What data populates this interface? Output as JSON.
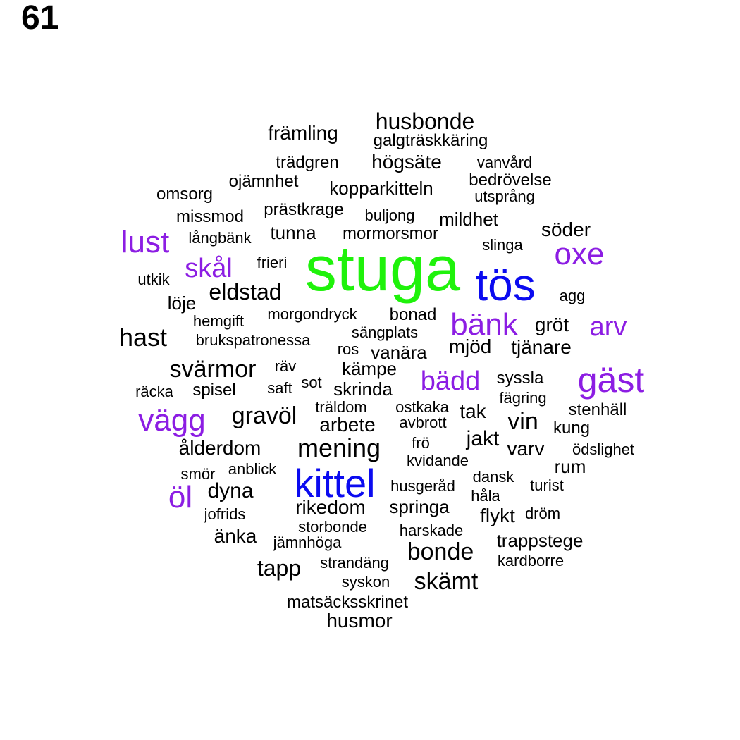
{
  "page_number": "61",
  "colors": {
    "black": "#000000",
    "purple": "#8c1de3",
    "blue": "#0b0bf0",
    "green": "#1ff20b"
  },
  "words": [
    {
      "text": "stuga",
      "color": "green"
    },
    {
      "text": "tös",
      "color": "blue"
    },
    {
      "text": "kittel",
      "color": "blue"
    },
    {
      "text": "gäst",
      "color": "purple"
    },
    {
      "text": "bänk",
      "color": "purple"
    },
    {
      "text": "lust",
      "color": "purple"
    },
    {
      "text": "oxe",
      "color": "purple"
    },
    {
      "text": "vägg",
      "color": "purple"
    },
    {
      "text": "öl",
      "color": "purple"
    },
    {
      "text": "skål",
      "color": "purple"
    },
    {
      "text": "arv",
      "color": "purple"
    },
    {
      "text": "bädd",
      "color": "purple"
    },
    {
      "text": "husbonde",
      "color": "black"
    },
    {
      "text": "galgträskkäring",
      "color": "black"
    },
    {
      "text": "främling",
      "color": "black"
    },
    {
      "text": "trädgren",
      "color": "black"
    },
    {
      "text": "högsäte",
      "color": "black"
    },
    {
      "text": "vanvård",
      "color": "black"
    },
    {
      "text": "ojämnhet",
      "color": "black"
    },
    {
      "text": "bedrövelse",
      "color": "black"
    },
    {
      "text": "omsorg",
      "color": "black"
    },
    {
      "text": "kopparkitteln",
      "color": "black"
    },
    {
      "text": "utsprång",
      "color": "black"
    },
    {
      "text": "prästkrage",
      "color": "black"
    },
    {
      "text": "missmod",
      "color": "black"
    },
    {
      "text": "buljong",
      "color": "black"
    },
    {
      "text": "mildhet",
      "color": "black"
    },
    {
      "text": "söder",
      "color": "black"
    },
    {
      "text": "tunna",
      "color": "black"
    },
    {
      "text": "långbänk",
      "color": "black"
    },
    {
      "text": "mormorsmor",
      "color": "black"
    },
    {
      "text": "slinga",
      "color": "black"
    },
    {
      "text": "frieri",
      "color": "black"
    },
    {
      "text": "utkik",
      "color": "black"
    },
    {
      "text": "eldstad",
      "color": "black"
    },
    {
      "text": "agg",
      "color": "black"
    },
    {
      "text": "löje",
      "color": "black"
    },
    {
      "text": "morgondryck",
      "color": "black"
    },
    {
      "text": "bonad",
      "color": "black"
    },
    {
      "text": "hemgift",
      "color": "black"
    },
    {
      "text": "gröt",
      "color": "black"
    },
    {
      "text": "hast",
      "color": "black"
    },
    {
      "text": "sängplats",
      "color": "black"
    },
    {
      "text": "brukspatronessa",
      "color": "black"
    },
    {
      "text": "mjöd",
      "color": "black"
    },
    {
      "text": "tjänare",
      "color": "black"
    },
    {
      "text": "ros",
      "color": "black"
    },
    {
      "text": "vanära",
      "color": "black"
    },
    {
      "text": "svärmor",
      "color": "black"
    },
    {
      "text": "räv",
      "color": "black"
    },
    {
      "text": "kämpe",
      "color": "black"
    },
    {
      "text": "syssla",
      "color": "black"
    },
    {
      "text": "räcka",
      "color": "black"
    },
    {
      "text": "spisel",
      "color": "black"
    },
    {
      "text": "saft",
      "color": "black"
    },
    {
      "text": "sot",
      "color": "black"
    },
    {
      "text": "skrinda",
      "color": "black"
    },
    {
      "text": "fägring",
      "color": "black"
    },
    {
      "text": "gravöl",
      "color": "black"
    },
    {
      "text": "träldom",
      "color": "black"
    },
    {
      "text": "ostkaka",
      "color": "black"
    },
    {
      "text": "tak",
      "color": "black"
    },
    {
      "text": "stenhäll",
      "color": "black"
    },
    {
      "text": "arbete",
      "color": "black"
    },
    {
      "text": "avbrott",
      "color": "black"
    },
    {
      "text": "vin",
      "color": "black"
    },
    {
      "text": "kung",
      "color": "black"
    },
    {
      "text": "ålderdom",
      "color": "black"
    },
    {
      "text": "mening",
      "color": "black"
    },
    {
      "text": "frö",
      "color": "black"
    },
    {
      "text": "jakt",
      "color": "black"
    },
    {
      "text": "varv",
      "color": "black"
    },
    {
      "text": "ödslighet",
      "color": "black"
    },
    {
      "text": "kvidande",
      "color": "black"
    },
    {
      "text": "rum",
      "color": "black"
    },
    {
      "text": "smör",
      "color": "black"
    },
    {
      "text": "anblick",
      "color": "black"
    },
    {
      "text": "dansk",
      "color": "black"
    },
    {
      "text": "husgeråd",
      "color": "black"
    },
    {
      "text": "turist",
      "color": "black"
    },
    {
      "text": "dyna",
      "color": "black"
    },
    {
      "text": "håla",
      "color": "black"
    },
    {
      "text": "rikedom",
      "color": "black"
    },
    {
      "text": "springa",
      "color": "black"
    },
    {
      "text": "jofrids",
      "color": "black"
    },
    {
      "text": "flykt",
      "color": "black"
    },
    {
      "text": "dröm",
      "color": "black"
    },
    {
      "text": "storbonde",
      "color": "black"
    },
    {
      "text": "harskade",
      "color": "black"
    },
    {
      "text": "änka",
      "color": "black"
    },
    {
      "text": "jämnhöga",
      "color": "black"
    },
    {
      "text": "trappstege",
      "color": "black"
    },
    {
      "text": "bonde",
      "color": "black"
    },
    {
      "text": "kardborre",
      "color": "black"
    },
    {
      "text": "tapp",
      "color": "black"
    },
    {
      "text": "strandäng",
      "color": "black"
    },
    {
      "text": "skämt",
      "color": "black"
    },
    {
      "text": "syskon",
      "color": "black"
    },
    {
      "text": "matsäcksskrinet",
      "color": "black"
    },
    {
      "text": "husmor",
      "color": "black"
    }
  ]
}
